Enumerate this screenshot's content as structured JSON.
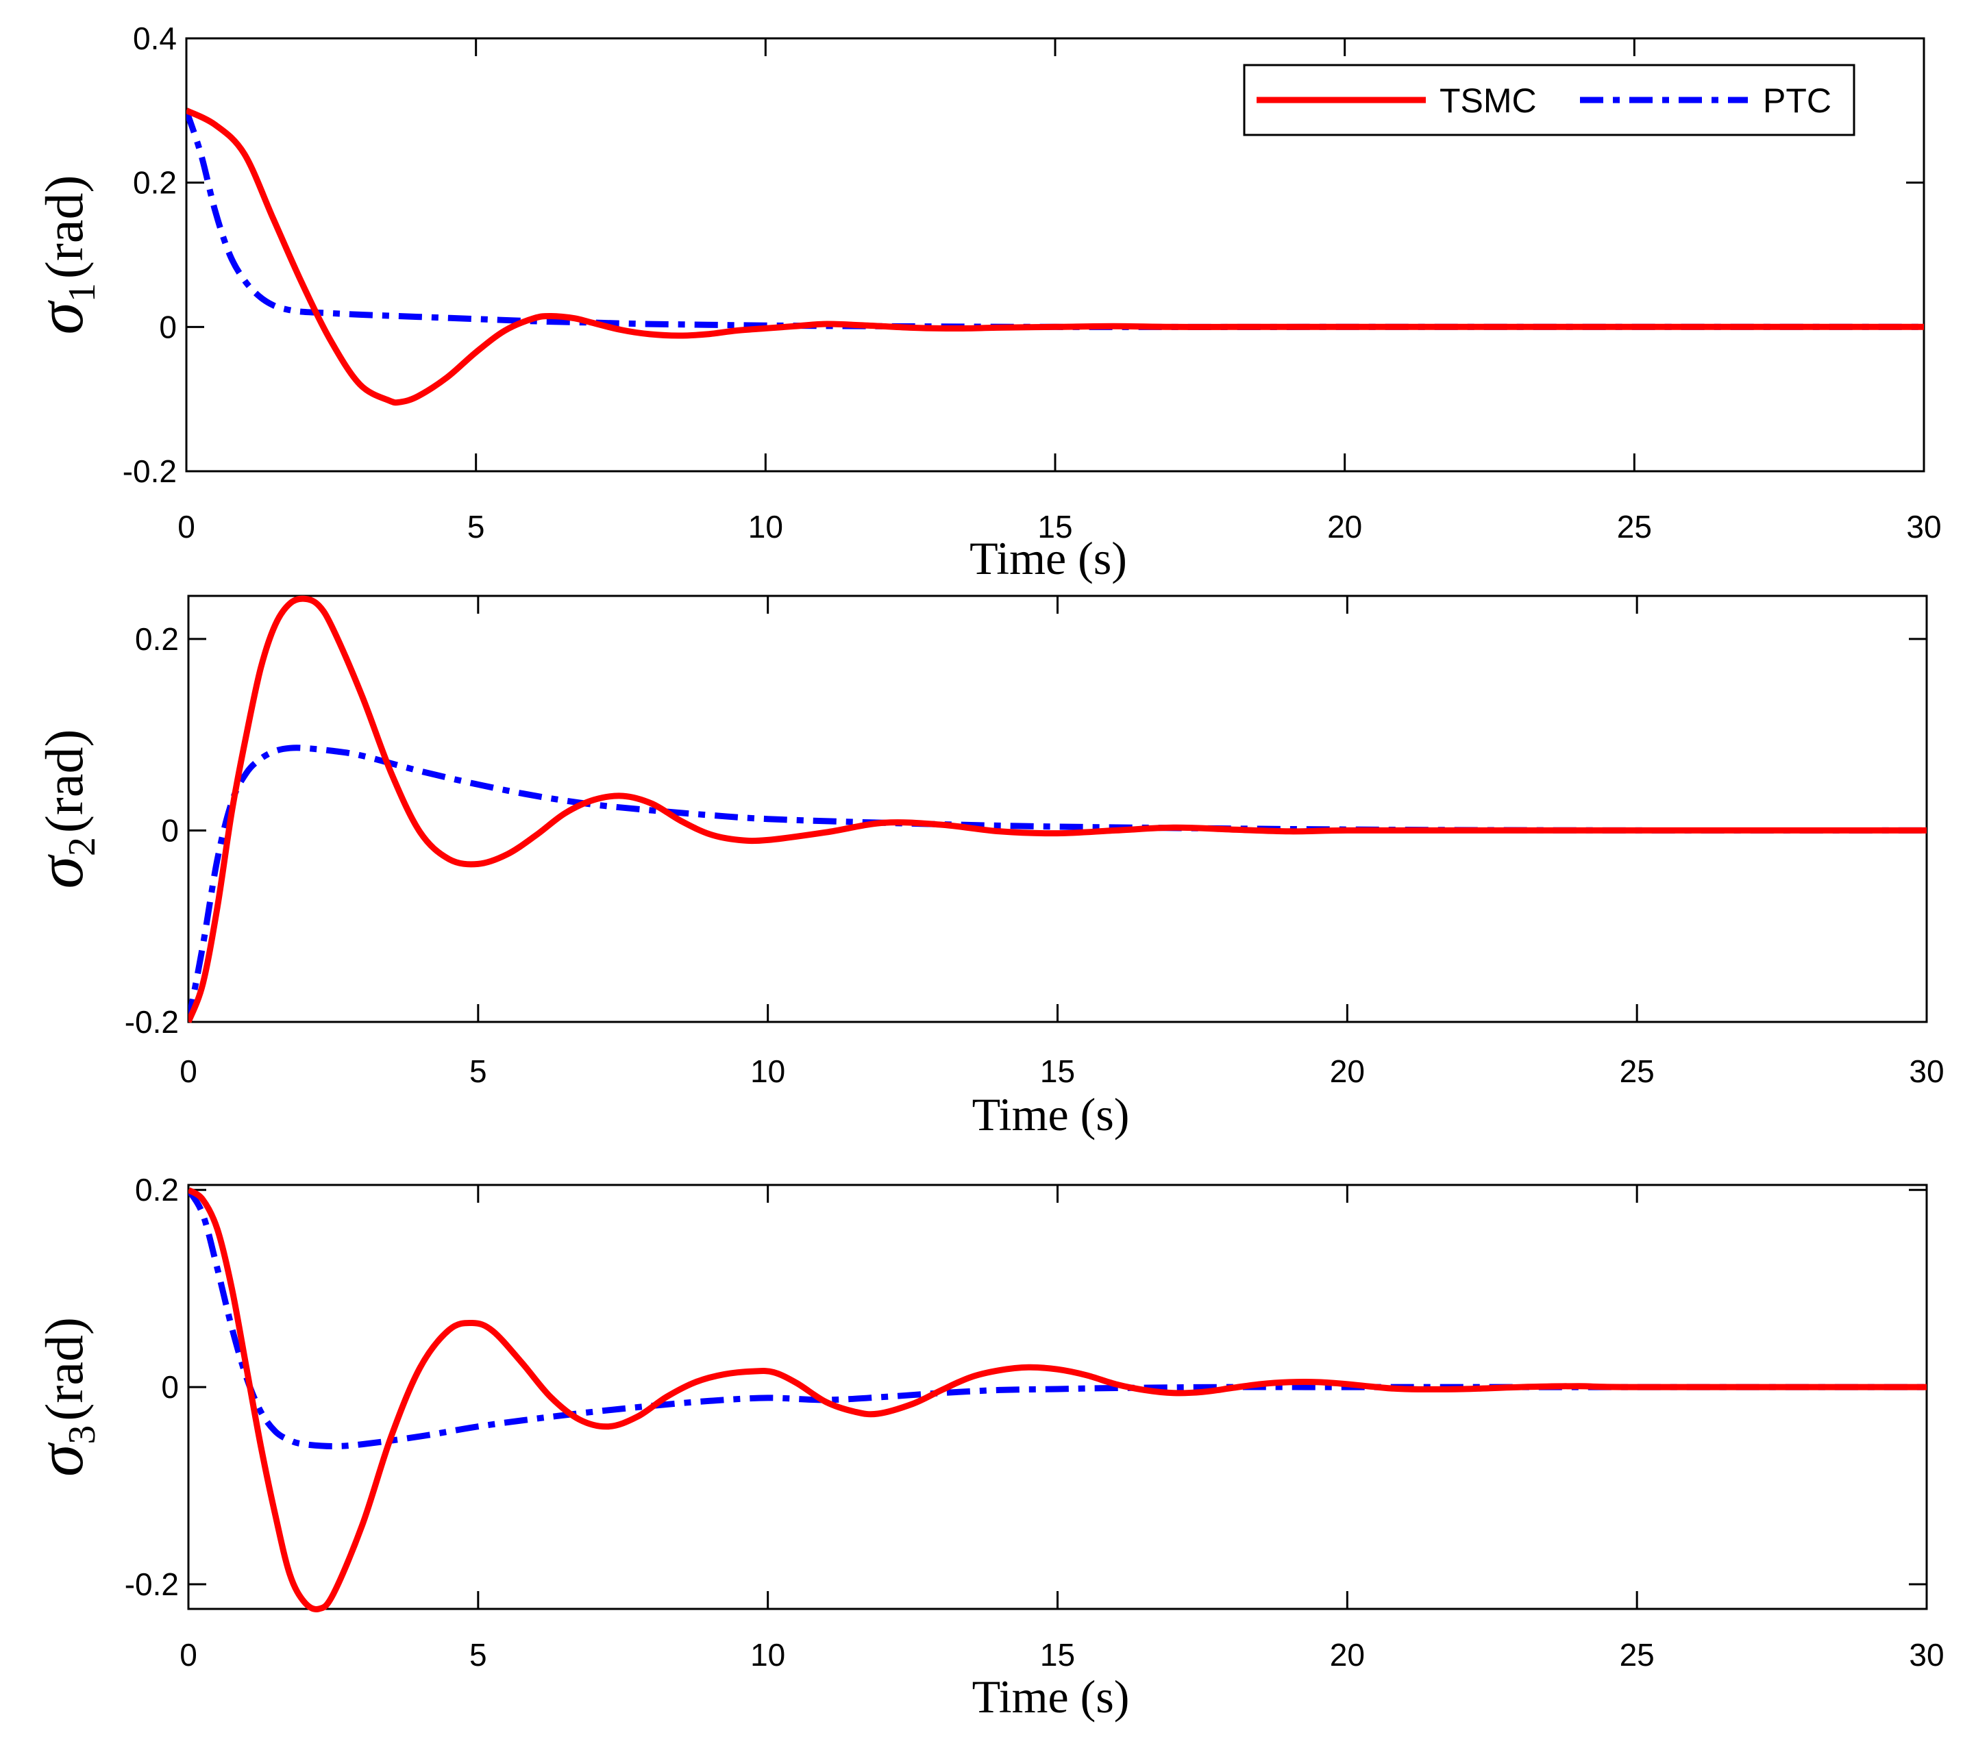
{
  "chart_data": [
    {
      "type": "line",
      "id": "sigma1",
      "ylabel": {
        "symbol": "σ",
        "subscript": "1",
        "unit": "(rad)"
      },
      "xlabel": "Time (s)",
      "xlim": [
        0,
        30
      ],
      "ylim": [
        -0.2,
        0.4
      ],
      "xticks": [
        0,
        5,
        10,
        15,
        20,
        25,
        30
      ],
      "xtick_labels": [
        "0",
        "5",
        "10",
        "15",
        "20",
        "25",
        "30"
      ],
      "yticks": [
        -0.2,
        0,
        0.2,
        0.4
      ],
      "ytick_labels": [
        "-0.2",
        "0",
        "0.2",
        "0.4"
      ],
      "legend": true,
      "series": [
        {
          "name": "TSMC",
          "x": [
            0,
            0.5,
            1.0,
            1.5,
            2.0,
            2.5,
            3.0,
            3.5,
            3.7,
            4.0,
            4.5,
            5.0,
            5.5,
            6.0,
            6.3,
            6.7,
            7.0,
            7.5,
            8.0,
            8.5,
            9.0,
            9.5,
            10.0,
            10.5,
            11.0,
            11.5,
            12.0,
            12.5,
            13.0,
            13.5,
            14.0,
            15.0,
            16.0,
            17.0,
            18.0,
            20.0,
            22.0,
            25.0,
            30.0
          ],
          "y": [
            0.3,
            0.28,
            0.24,
            0.15,
            0.06,
            -0.02,
            -0.08,
            -0.102,
            -0.104,
            -0.096,
            -0.07,
            -0.035,
            -0.005,
            0.012,
            0.015,
            0.012,
            0.006,
            -0.004,
            -0.01,
            -0.012,
            -0.01,
            -0.005,
            -0.002,
            0.001,
            0.004,
            0.003,
            0.001,
            -0.001,
            -0.002,
            -0.002,
            -0.001,
            0.0,
            0.001,
            0.0,
            0.0,
            0.0,
            0.0,
            0.0,
            0.0
          ],
          "color": "#ff0000",
          "style": "solid"
        },
        {
          "name": "PTC",
          "x": [
            0,
            0.25,
            0.5,
            0.75,
            1.0,
            1.25,
            1.5,
            1.75,
            2.0,
            2.5,
            3.0,
            4.0,
            5.0,
            6.0,
            7.0,
            8.0,
            9.0,
            10.0,
            12.0,
            15.0,
            20.0,
            25.0,
            30.0
          ],
          "y": [
            0.3,
            0.24,
            0.16,
            0.1,
            0.065,
            0.043,
            0.03,
            0.024,
            0.021,
            0.019,
            0.017,
            0.014,
            0.011,
            0.008,
            0.006,
            0.004,
            0.003,
            0.002,
            0.001,
            0.0,
            0.0,
            0.0,
            0.0
          ],
          "color": "#0000ff",
          "style": "dashdot"
        }
      ]
    },
    {
      "type": "line",
      "id": "sigma2",
      "ylabel": {
        "symbol": "σ",
        "subscript": "2",
        "unit": "(rad)"
      },
      "xlabel": "Time (s)",
      "xlim": [
        0,
        30
      ],
      "ylim": [
        -0.2,
        0.245
      ],
      "xticks": [
        0,
        5,
        10,
        15,
        20,
        25,
        30
      ],
      "xtick_labels": [
        "0",
        "5",
        "10",
        "15",
        "20",
        "25",
        "30"
      ],
      "yticks": [
        -0.2,
        0,
        0.2
      ],
      "ytick_labels": [
        "-0.2",
        "0",
        "0.2"
      ],
      "legend": false,
      "series": [
        {
          "name": "TSMC",
          "x": [
            0,
            0.25,
            0.5,
            0.75,
            1.0,
            1.25,
            1.5,
            1.75,
            2.0,
            2.25,
            2.5,
            3.0,
            3.5,
            4.0,
            4.5,
            5.0,
            5.5,
            6.0,
            6.5,
            7.0,
            7.5,
            8.0,
            8.5,
            9.0,
            9.5,
            10.0,
            11.0,
            12.0,
            13.0,
            14.0,
            15.0,
            16.0,
            17.0,
            18.0,
            19.0,
            20.0,
            22.0,
            25.0,
            30.0
          ],
          "y": [
            -0.2,
            -0.16,
            -0.08,
            0.02,
            0.1,
            0.17,
            0.215,
            0.237,
            0.242,
            0.235,
            0.21,
            0.14,
            0.06,
            -0.002,
            -0.03,
            -0.035,
            -0.025,
            -0.005,
            0.018,
            0.032,
            0.036,
            0.028,
            0.01,
            -0.004,
            -0.01,
            -0.01,
            -0.002,
            0.008,
            0.006,
            -0.001,
            -0.003,
            0.0,
            0.003,
            0.001,
            -0.001,
            0.0,
            0.0,
            0.0,
            0.0
          ],
          "color": "#ff0000",
          "style": "solid"
        },
        {
          "name": "PTC",
          "x": [
            0,
            0.25,
            0.5,
            0.75,
            1.0,
            1.25,
            1.5,
            1.75,
            2.0,
            2.5,
            3.0,
            4.0,
            5.0,
            6.0,
            7.0,
            8.0,
            9.0,
            10.0,
            12.0,
            15.0,
            20.0,
            25.0,
            30.0
          ],
          "y": [
            -0.2,
            -0.12,
            -0.03,
            0.03,
            0.06,
            0.075,
            0.083,
            0.086,
            0.086,
            0.083,
            0.078,
            0.062,
            0.048,
            0.036,
            0.027,
            0.021,
            0.016,
            0.012,
            0.008,
            0.004,
            0.001,
            0.0,
            0.0
          ],
          "color": "#0000ff",
          "style": "dashdot"
        }
      ]
    },
    {
      "type": "line",
      "id": "sigma3",
      "ylabel": {
        "symbol": "σ",
        "subscript": "3",
        "unit": "(rad)"
      },
      "xlabel": "Time (s)",
      "xlim": [
        0,
        30
      ],
      "ylim": [
        -0.225,
        0.205
      ],
      "xticks": [
        0,
        5,
        10,
        15,
        20,
        25,
        30
      ],
      "xtick_labels": [
        "0",
        "5",
        "10",
        "15",
        "20",
        "25",
        "30"
      ],
      "yticks": [
        -0.2,
        0,
        0.2
      ],
      "ytick_labels": [
        "-0.2",
        "0",
        "0.2"
      ],
      "legend": false,
      "series": [
        {
          "name": "TSMC",
          "x": [
            0,
            0.25,
            0.5,
            0.75,
            1.0,
            1.25,
            1.5,
            1.75,
            2.0,
            2.25,
            2.5,
            3.0,
            3.5,
            4.0,
            4.5,
            4.9,
            5.25,
            5.75,
            6.25,
            6.75,
            7.25,
            7.75,
            8.25,
            8.75,
            9.25,
            9.75,
            10.1,
            10.5,
            11.0,
            11.5,
            11.9,
            12.5,
            13.0,
            13.5,
            14.0,
            14.5,
            15.0,
            15.5,
            16.0,
            16.5,
            17.0,
            17.5,
            18.0,
            18.5,
            19.0,
            19.5,
            20.0,
            20.5,
            21.0,
            22.0,
            23.0,
            24.0,
            25.0,
            30.0
          ],
          "y": [
            0.2,
            0.19,
            0.16,
            0.1,
            0.02,
            -0.06,
            -0.13,
            -0.19,
            -0.218,
            -0.225,
            -0.21,
            -0.14,
            -0.05,
            0.02,
            0.058,
            0.065,
            0.057,
            0.025,
            -0.01,
            -0.033,
            -0.04,
            -0.03,
            -0.01,
            0.005,
            0.013,
            0.016,
            0.015,
            0.004,
            -0.015,
            -0.025,
            -0.027,
            -0.017,
            -0.003,
            0.01,
            0.017,
            0.02,
            0.018,
            0.012,
            0.003,
            -0.003,
            -0.006,
            -0.005,
            -0.001,
            0.003,
            0.005,
            0.005,
            0.003,
            0.0,
            -0.002,
            -0.002,
            0.0,
            0.001,
            0.0,
            0.0
          ],
          "color": "#ff0000",
          "style": "solid"
        },
        {
          "name": "PTC",
          "x": [
            0,
            0.25,
            0.5,
            0.75,
            1.0,
            1.25,
            1.5,
            1.75,
            2.0,
            2.5,
            3.0,
            4.0,
            5.0,
            6.0,
            7.0,
            8.0,
            9.0,
            10.0,
            11.0,
            12.0,
            13.0,
            14.0,
            15.0,
            16.0,
            18.0,
            20.0,
            25.0,
            30.0
          ],
          "y": [
            0.2,
            0.175,
            0.12,
            0.06,
            0.01,
            -0.025,
            -0.045,
            -0.054,
            -0.058,
            -0.06,
            -0.058,
            -0.05,
            -0.04,
            -0.032,
            -0.025,
            -0.019,
            -0.014,
            -0.011,
            -0.013,
            -0.01,
            -0.006,
            -0.003,
            -0.002,
            -0.001,
            0.0,
            0.0,
            0.0,
            0.0
          ],
          "color": "#0000ff",
          "style": "dashdot"
        }
      ]
    }
  ]
}
